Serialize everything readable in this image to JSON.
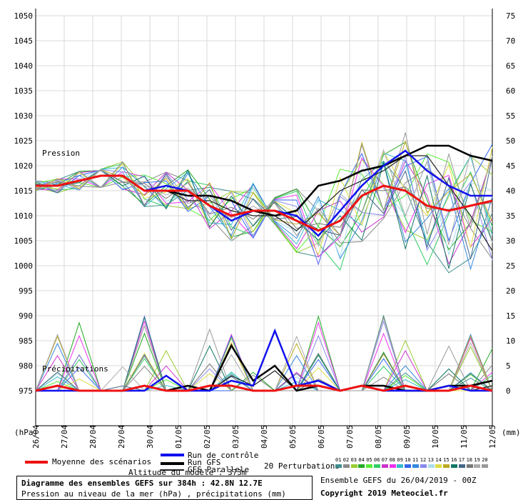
{
  "chart_data": {
    "type": "line",
    "title": "Diagramme des ensembles GEFS sur 384h : 42.8N 12.7E",
    "subtitle": "Pression au niveau de la mer (hPa) , précipitations (mm)",
    "left_axis": {
      "unit": "(hPa)",
      "ticks": [
        1050,
        1045,
        1040,
        1035,
        1030,
        1025,
        1020,
        1015,
        1010,
        1005,
        1000,
        995,
        990,
        985,
        980,
        975
      ]
    },
    "right_axis": {
      "unit": "(mm)",
      "ticks": [
        75,
        70,
        65,
        60,
        55,
        50,
        45,
        40,
        35,
        30,
        25,
        20,
        15,
        10,
        5,
        0
      ]
    },
    "x_ticks": [
      "26/04",
      "27/04",
      "28/04",
      "29/04",
      "30/04",
      "01/05",
      "02/05",
      "03/05",
      "04/05",
      "05/05",
      "06/05",
      "07/05",
      "08/05",
      "09/05",
      "10/05",
      "11/05",
      "12/05"
    ],
    "grid": true,
    "panel_labels": {
      "pressure": "Pression",
      "precip": "Précipitations"
    },
    "series": [
      {
        "name": "Moyenne des scénarios",
        "color": "#ee1111",
        "pressure": [
          1016,
          1016,
          1017,
          1018,
          1018,
          1015,
          1015,
          1015,
          1012,
          1010,
          1011,
          1011,
          1009,
          1007,
          1009,
          1014,
          1016,
          1015,
          1012,
          1011,
          1012,
          1013
        ],
        "precip": [
          0,
          1,
          0,
          0,
          0,
          1,
          0,
          0,
          1,
          1,
          0,
          0,
          1,
          1,
          0,
          1,
          0,
          1,
          0,
          0,
          1,
          0
        ]
      },
      {
        "name": "Run de contrôle",
        "color": "#1111ee",
        "pressure": [
          1016,
          1016,
          1017,
          1018,
          1018,
          1015,
          1016,
          1015,
          1012,
          1009,
          1011,
          1011,
          1010,
          1006,
          1011,
          1016,
          1020,
          1023,
          1019,
          1016,
          1014,
          1014
        ],
        "precip": [
          0,
          0,
          0,
          0,
          0,
          0,
          3,
          0,
          0,
          2,
          1,
          12,
          1,
          2,
          0,
          1,
          0,
          0,
          0,
          1,
          0,
          0
        ]
      },
      {
        "name": "Run GFS",
        "color": "#000000",
        "pressure": [
          1016,
          1016,
          1017,
          1018,
          1018,
          1015,
          1015,
          1014,
          1014,
          1013,
          1011,
          1010,
          1011,
          1016,
          1017,
          1019,
          1020,
          1022,
          1024,
          1024,
          1022,
          1021
        ],
        "precip": [
          0,
          1,
          0,
          0,
          0,
          1,
          0,
          1,
          0,
          9,
          2,
          5,
          0,
          1,
          0,
          1,
          1,
          0,
          0,
          1,
          1,
          2
        ]
      },
      {
        "name": "GFS Parallele",
        "color": "#222222",
        "pressure": [
          1016,
          1016,
          1017,
          1018,
          1018,
          1015,
          1015,
          1013,
          1013,
          1011,
          1010,
          1010,
          1007,
          1011,
          1015,
          1017,
          1019,
          1022,
          1022,
          1016,
          1010,
          1003
        ],
        "precip": [
          0,
          1,
          0,
          0,
          0,
          1,
          0,
          1,
          0,
          3,
          1,
          4,
          0,
          1,
          0,
          1,
          0,
          1,
          0,
          1,
          0,
          1
        ]
      }
    ],
    "perturbations_label": "20 Perturbations",
    "perturbations": [
      {
        "name": "01",
        "color": "#3f8f8f"
      },
      {
        "name": "02",
        "color": "#8a8a8a"
      },
      {
        "name": "03",
        "color": "#99cc33"
      },
      {
        "name": "04",
        "color": "#22aa22"
      },
      {
        "name": "05",
        "color": "#55ee33"
      },
      {
        "name": "06",
        "color": "#33cc66"
      },
      {
        "name": "07",
        "color": "#cc33cc"
      },
      {
        "name": "08",
        "color": "#ee33ee"
      },
      {
        "name": "09",
        "color": "#33bbcc"
      },
      {
        "name": "10",
        "color": "#3366ee"
      },
      {
        "name": "11",
        "color": "#3388dd"
      },
      {
        "name": "12",
        "color": "#8888ee"
      },
      {
        "name": "13",
        "color": "#aaddee"
      },
      {
        "name": "14",
        "color": "#dddd44"
      },
      {
        "name": "15",
        "color": "#bbaa22"
      },
      {
        "name": "16",
        "color": "#117766"
      },
      {
        "name": "17",
        "color": "#446688"
      },
      {
        "name": "18",
        "color": "#777777"
      },
      {
        "name": "19",
        "color": "#aaaaaa"
      },
      {
        "name": "20",
        "color": "#999999"
      }
    ]
  },
  "legend": {
    "mean": "Moyenne des scénarios",
    "control": "Run de contrôle",
    "gfs": "Run GFS",
    "parallel": "GFS Parallele",
    "perturbations": "20 Perturbations",
    "altitude": "Altitude du modèle : 373m"
  },
  "footer": {
    "title": "Diagramme des ensembles GEFS sur 384h : 42.8N 12.7E",
    "subtitle": "Pression au niveau de la mer (hPa) , précipitations (mm)",
    "run_info": "Ensemble GEFS du 26/04/2019 - 00Z",
    "copyright": "Copyright 2019 Meteociel.fr"
  }
}
